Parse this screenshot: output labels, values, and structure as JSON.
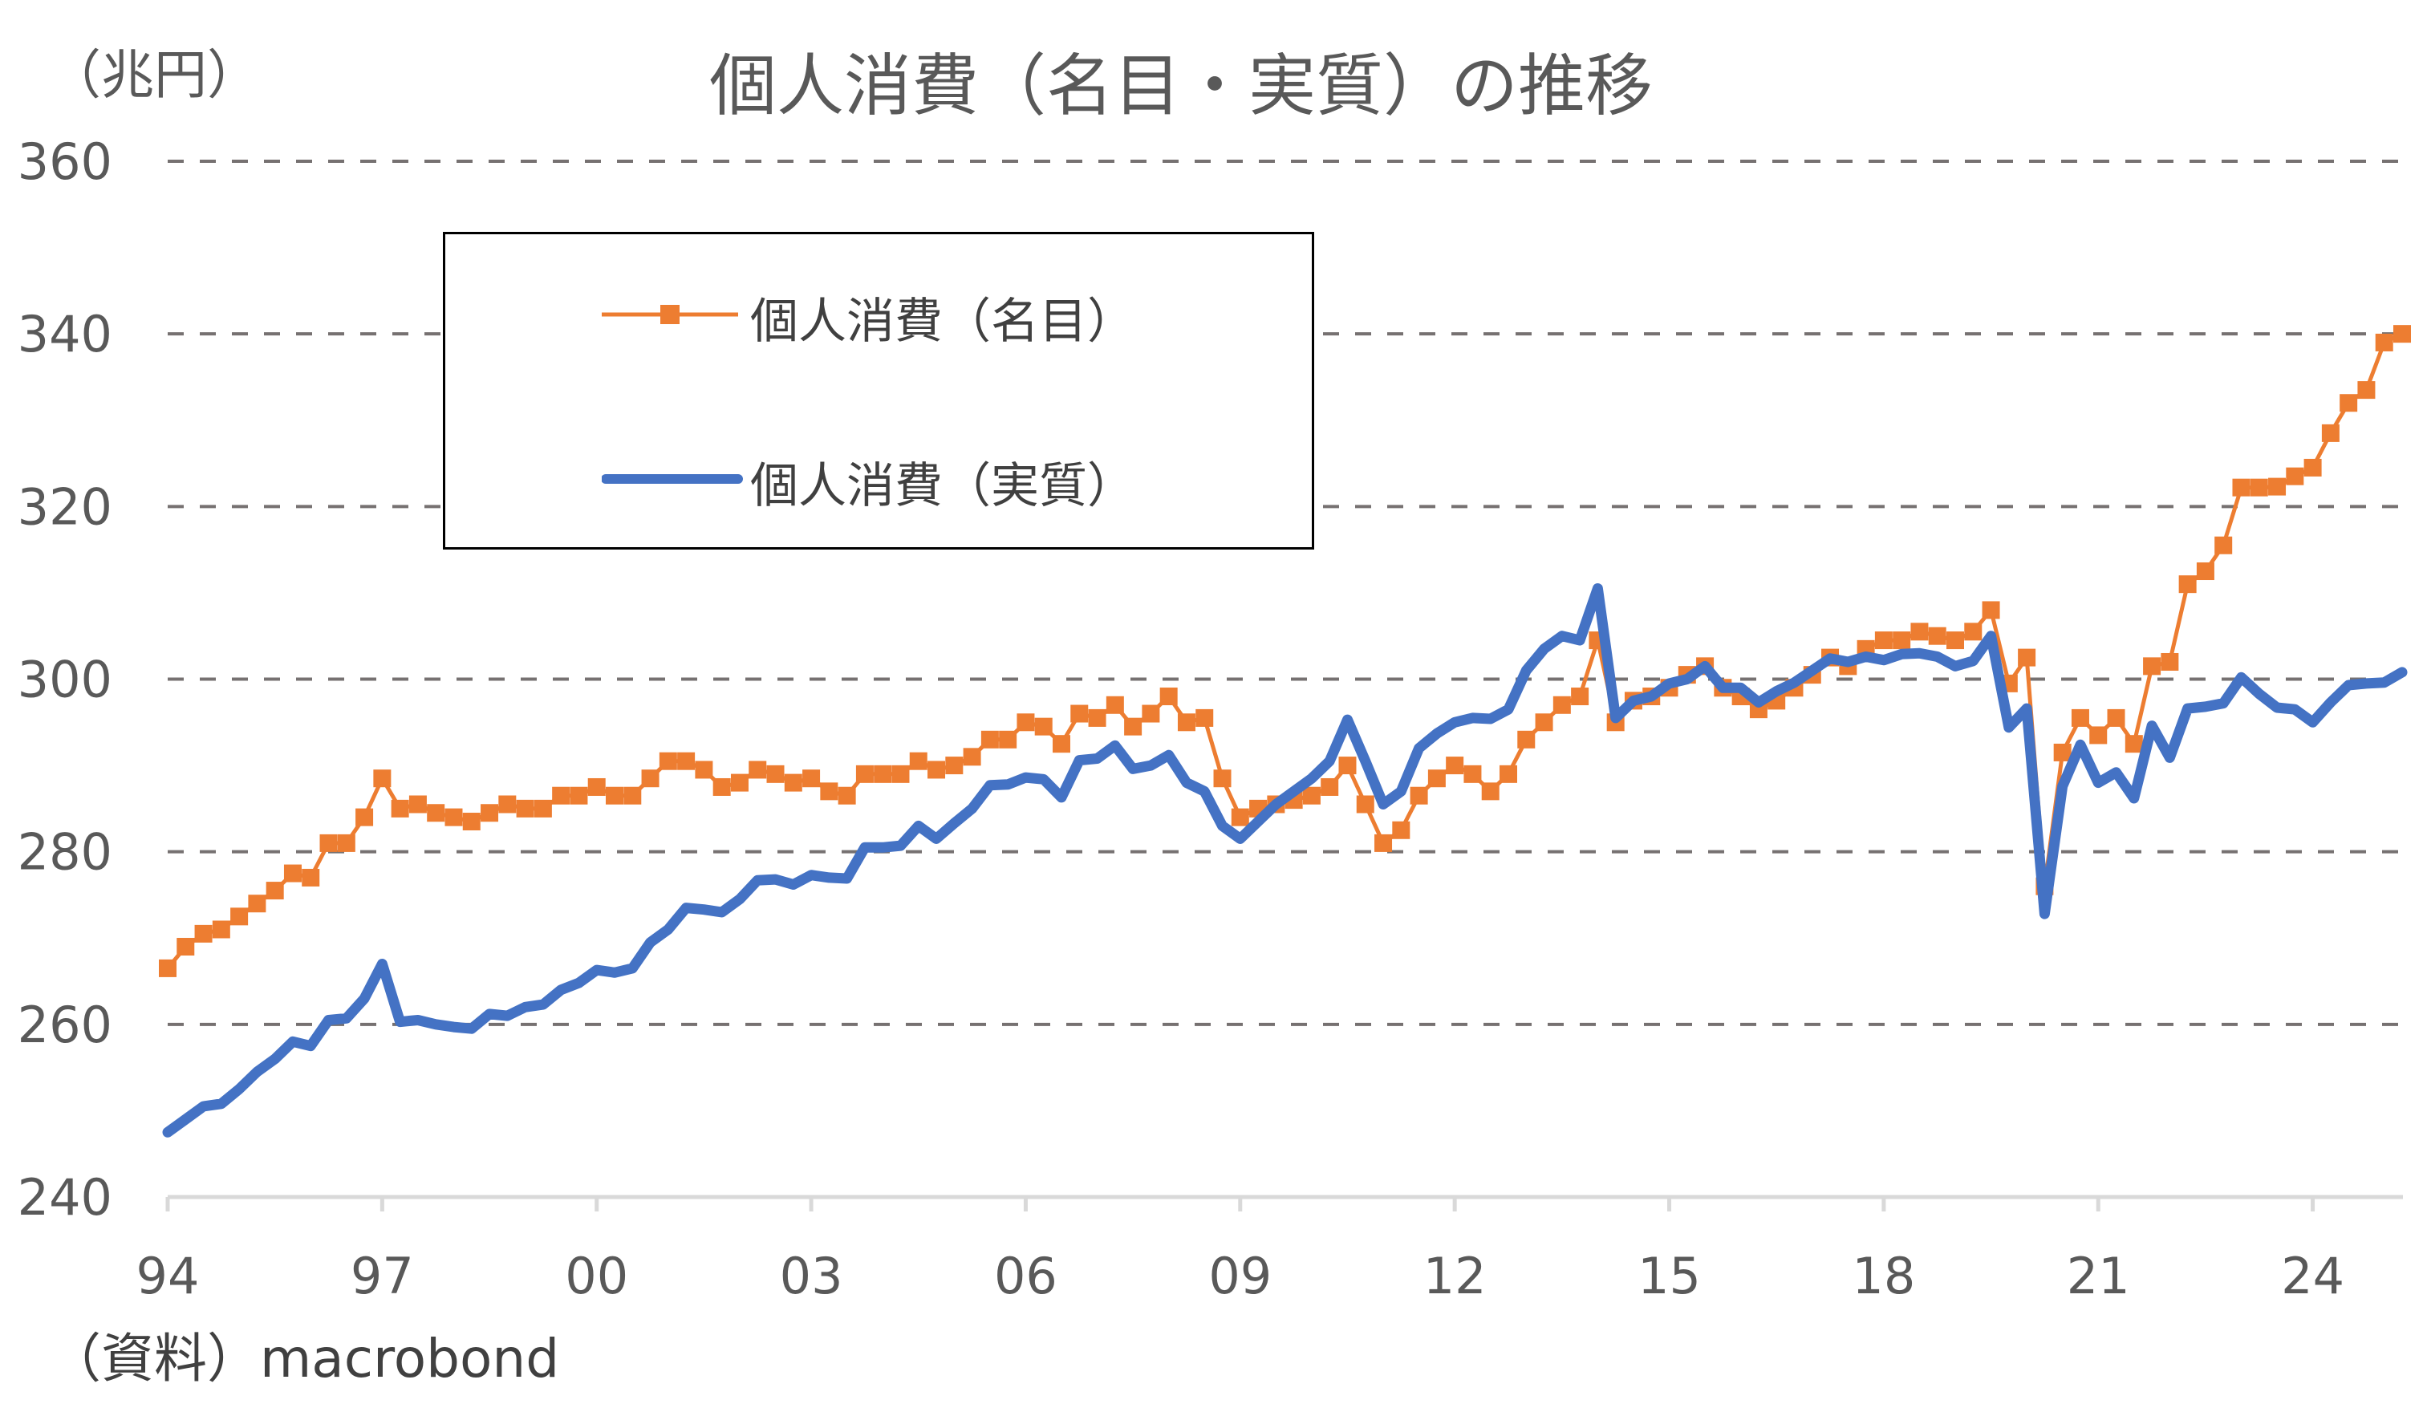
{
  "chart_data": {
    "type": "line",
    "title": "個人消費（名目・実質）の推移",
    "ylabel": "（兆円）",
    "source": "（資料）macrobond",
    "ylim": [
      240,
      360
    ],
    "yticks": [
      "240",
      "260",
      "280",
      "300",
      "320",
      "340",
      "360"
    ],
    "xticks": [
      "94",
      "97",
      "00",
      "03",
      "06",
      "09",
      "12",
      "15",
      "18",
      "21",
      "24"
    ],
    "x_start": "1994Q1",
    "frequency": "quarterly",
    "grid": "horizontal dashed",
    "legend": "top-left",
    "series": [
      {
        "name": "個人消費（名目）",
        "color": "#ED7D31",
        "marker": "square",
        "values": [
          266.5,
          269,
          270.5,
          271,
          272.5,
          274,
          275.5,
          277.5,
          277,
          281,
          281,
          284,
          288.5,
          285,
          285.5,
          284.5,
          284,
          283.5,
          284.5,
          285.5,
          285,
          285,
          286.5,
          286.5,
          287.5,
          286.5,
          286.5,
          288.5,
          290.5,
          290.5,
          289.5,
          287.5,
          288,
          289.5,
          289,
          288,
          288.5,
          287,
          286.5,
          289,
          289,
          289,
          290.5,
          289.5,
          290,
          291,
          293,
          293,
          295,
          294.5,
          292.5,
          296,
          295.5,
          297,
          294.5,
          296,
          298,
          295,
          295.5,
          288.5,
          284,
          285,
          285.5,
          286,
          286.5,
          287.5,
          290,
          285.5,
          281,
          282.5,
          286.5,
          288.5,
          290,
          289,
          287,
          289,
          293,
          295,
          297,
          298,
          304.5,
          295,
          297.5,
          298,
          299,
          300.5,
          301.5,
          299,
          298,
          296.5,
          297.5,
          299,
          300.5,
          302.5,
          301.5,
          303.5,
          304.5,
          304.5,
          305.5,
          305,
          304.5,
          305.5,
          308,
          299.5,
          302.5,
          276,
          291.5,
          295.5,
          293.5,
          295.5,
          292.5,
          301.5,
          302,
          311,
          312.5,
          315.5,
          322.2,
          322.2,
          322.3,
          323.5,
          324.5,
          328.5,
          332,
          333.5,
          339,
          340
        ]
      },
      {
        "name": "個人消費（実質）",
        "color": "#4472C4",
        "marker": "none",
        "values": [
          247.5,
          249,
          250.5,
          250.8,
          252.5,
          254.5,
          256,
          258,
          257.5,
          260.5,
          260.7,
          263,
          267,
          260.3,
          260.5,
          260,
          259.7,
          259.5,
          261.2,
          261,
          262,
          262.3,
          264,
          264.8,
          266.3,
          266,
          266.5,
          269.5,
          271,
          273.5,
          273.3,
          273,
          274.5,
          276.7,
          276.8,
          276.2,
          277.3,
          277,
          276.9,
          280.5,
          280.5,
          280.7,
          283,
          281.5,
          283.3,
          285,
          287.7,
          287.8,
          288.6,
          288.4,
          286.3,
          290.6,
          290.8,
          292.3,
          289.6,
          290,
          291.2,
          288,
          287,
          283,
          281.5,
          283.5,
          285.5,
          287,
          288.5,
          290.5,
          295.3,
          290.5,
          285.5,
          287,
          292,
          293.7,
          295,
          295.5,
          295.4,
          296.5,
          301,
          303.5,
          305,
          304.5,
          310.5,
          295.5,
          297.5,
          298,
          299.5,
          300,
          301.5,
          299,
          299,
          297.3,
          298.6,
          299.6,
          301,
          302.4,
          302,
          302.6,
          302.2,
          302.9,
          303,
          302.6,
          301.5,
          302.1,
          305,
          294.4,
          296.6,
          272.8,
          287.6,
          292.4,
          288,
          289.2,
          286.2,
          294.6,
          290.9,
          296.6,
          296.8,
          297.2,
          300.2,
          298.3,
          296.7,
          296.5,
          295,
          297.3,
          299.3,
          299.5,
          299.6,
          300.8
        ]
      }
    ]
  }
}
